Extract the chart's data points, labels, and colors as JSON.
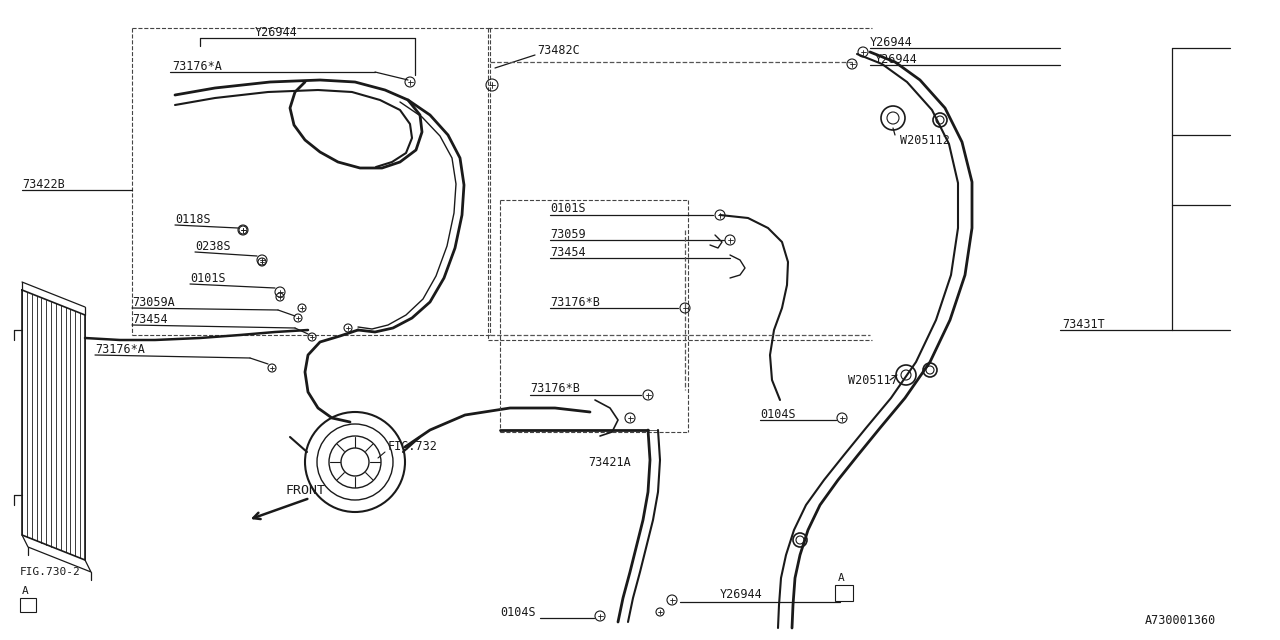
{
  "bg_color": "#ffffff",
  "line_color": "#1a1a1a",
  "figure_width": 12.8,
  "figure_height": 6.4,
  "labels": {
    "Y26944_top": "Y26944",
    "73176A_top": "73176*A",
    "73482C": "73482C",
    "73422B": "73422B",
    "0118S": "0118S",
    "0238S": "0238S",
    "0101S_left": "0101S",
    "73059A": "73059A",
    "73454_left": "73454",
    "73176A_bot": "73176*A",
    "FIG732": "FIG.732",
    "FIG730": "FIG.730-2",
    "FRONT": "FRONT",
    "Y26944_tr1": "Y26944",
    "Y26944_tr2": "Y26944",
    "W205112": "W205112",
    "0101S_right": "0101S",
    "73059_right": "73059",
    "73454_right": "73454",
    "73176B_top": "73176*B",
    "73176B_bot": "73176*B",
    "73431T": "73431T",
    "W205117": "W205117",
    "0104S_right": "0104S",
    "73421A": "73421A",
    "Y26944_bot": "Y26944",
    "0104S_bot": "0104S",
    "A730001360": "A730001360",
    "A_label1": "A",
    "A_label2": "A"
  }
}
